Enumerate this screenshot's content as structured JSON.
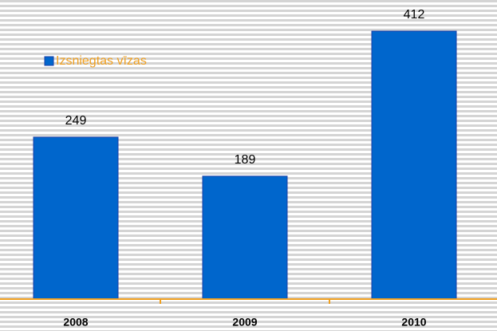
{
  "chart_data": {
    "type": "bar",
    "categories": [
      "2008",
      "2009",
      "2010"
    ],
    "series": [
      {
        "name": "Izsniegtas vīzas",
        "color": "#0066cc",
        "values": [
          249,
          189,
          412
        ]
      }
    ],
    "legend": "top-left"
  }
}
